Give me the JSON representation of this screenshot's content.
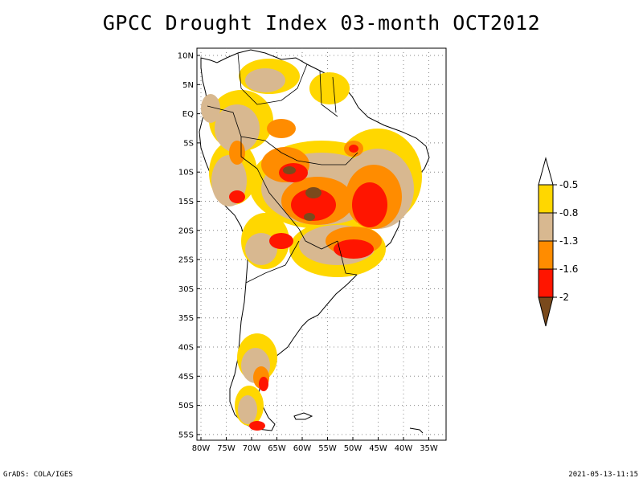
{
  "title": "GPCC Drought Index 03-month OCT2012",
  "footer": {
    "left": "GrADS: COLA/IGES",
    "right": "2021-05-13-11:15"
  },
  "map": {
    "lat_labels": [
      "10N",
      "5N",
      "EQ",
      "5S",
      "10S",
      "15S",
      "20S",
      "25S",
      "30S",
      "35S",
      "40S",
      "45S",
      "50S",
      "55S"
    ],
    "lon_labels": [
      "80W",
      "75W",
      "70W",
      "65W",
      "60W",
      "55W",
      "50W",
      "45W",
      "40W",
      "35W"
    ]
  },
  "legend": {
    "labels": [
      "-0.5",
      "-0.8",
      "-1.3",
      "-1.6",
      "-2"
    ],
    "colors": {
      "yellow": "#ffd700",
      "tan": "#d8b890",
      "orange": "#ff8c00",
      "red": "#ff1500",
      "brown": "#7a4a1c"
    }
  }
}
